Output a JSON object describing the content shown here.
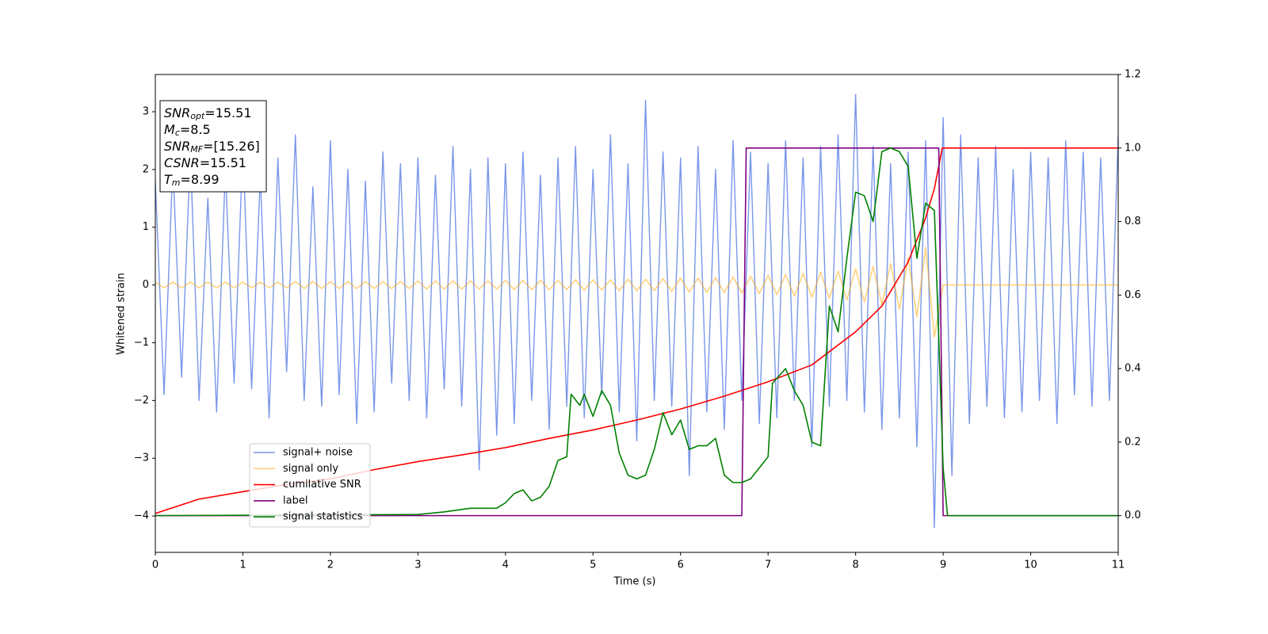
{
  "chart_data": {
    "type": "line",
    "xlabel": "Time (s)",
    "ylabel": "Whitened strain",
    "xlim": [
      0,
      11
    ],
    "xticks": [
      0,
      1,
      2,
      3,
      4,
      5,
      6,
      7,
      8,
      9,
      10,
      11
    ],
    "ylim": [
      -4.63,
      3.645
    ],
    "yticks": [
      {
        "value": -4,
        "label": "−4"
      },
      {
        "value": -3,
        "label": "−3"
      },
      {
        "value": -2,
        "label": "−2"
      },
      {
        "value": -1,
        "label": "−1"
      },
      0,
      1,
      2,
      3
    ],
    "y2lim": [
      -0.1,
      1.2
    ],
    "y2ticks": [
      {
        "value": 0,
        "label": "0.0"
      },
      0.2,
      0.4,
      0.6,
      0.8,
      {
        "value": 1,
        "label": "1.0"
      },
      1.2
    ],
    "legend": "lower left",
    "annotation": [
      {
        "text": "SNR",
        "sub": "opt",
        "tail": "=15.51"
      },
      {
        "text": "M",
        "sub": "c",
        "tail": "=8.5"
      },
      {
        "text": "SNR",
        "sub": "MF",
        "tail": "=[15.26]"
      },
      {
        "text": "CSNR",
        "tail": "=15.51"
      },
      {
        "text": "T",
        "sub": "m",
        "tail": "=8.99"
      }
    ],
    "series": [
      {
        "name": "signal+ noise",
        "color": "rgba(65,105,225,0.7)",
        "x": [
          0,
          0.1,
          0.2,
          0.3,
          0.4,
          0.5,
          0.6,
          0.7,
          0.8,
          0.9,
          1,
          1.1,
          1.2,
          1.3,
          1.4,
          1.5,
          1.6,
          1.7,
          1.8,
          1.9,
          2,
          2.1,
          2.2,
          2.3,
          2.4,
          2.5,
          2.6,
          2.7,
          2.8,
          2.9,
          3,
          3.1,
          3.2,
          3.3,
          3.4,
          3.5,
          3.6,
          3.7,
          3.8,
          3.9,
          4,
          4.1,
          4.2,
          4.3,
          4.4,
          4.5,
          4.6,
          4.7,
          4.8,
          4.9,
          5,
          5.1,
          5.2,
          5.3,
          5.4,
          5.5,
          5.6,
          5.7,
          5.8,
          5.9,
          6,
          6.1,
          6.2,
          6.3,
          6.4,
          6.5,
          6.6,
          6.7,
          6.8,
          6.9,
          7,
          7.1,
          7.2,
          7.3,
          7.4,
          7.5,
          7.6,
          7.7,
          7.8,
          7.9,
          8,
          8.1,
          8.2,
          8.3,
          8.4,
          8.5,
          8.6,
          8.7,
          8.8,
          8.9,
          9,
          9.1,
          9.2,
          9.3,
          9.4,
          9.5,
          9.6,
          9.7,
          9.8,
          9.9,
          10,
          10.1,
          10.2,
          10.3,
          10.4,
          10.5,
          10.6,
          10.7,
          10.8,
          10.9,
          11
        ],
        "values": [
          1.8,
          -1.9,
          2.1,
          -1.6,
          2.3,
          -2.0,
          1.5,
          -2.2,
          2.0,
          -1.7,
          2.4,
          -1.8,
          1.9,
          -2.3,
          2.2,
          -1.5,
          2.6,
          -2.0,
          1.7,
          -2.1,
          2.5,
          -1.9,
          2.0,
          -2.4,
          1.8,
          -2.2,
          2.3,
          -1.7,
          2.1,
          -2.0,
          2.2,
          -2.3,
          1.9,
          -1.8,
          2.4,
          -2.1,
          2.0,
          -3.2,
          2.2,
          -2.6,
          2.1,
          -2.4,
          2.3,
          -2.0,
          1.9,
          -2.5,
          2.2,
          -2.1,
          2.4,
          -2.3,
          2.0,
          -1.9,
          2.6,
          -2.2,
          2.1,
          -2.7,
          3.2,
          -2.0,
          2.3,
          -2.1,
          2.2,
          -3.3,
          2.4,
          -2.2,
          2.0,
          -2.5,
          2.5,
          -2.0,
          2.3,
          -2.4,
          2.1,
          -2.3,
          2.5,
          -2.0,
          2.2,
          -2.8,
          2.4,
          -2.1,
          2.6,
          -2.0,
          3.3,
          -2.2,
          2.4,
          -2.5,
          2.1,
          -2.3,
          2.3,
          -2.8,
          2.5,
          -4.2,
          2.9,
          -3.3,
          2.6,
          -2.4,
          2.2,
          -2.1,
          2.4,
          -2.3,
          2.0,
          -2.2,
          2.3,
          -2.0,
          2.2,
          -2.4,
          2.5,
          -1.9,
          2.3,
          -2.1,
          2.2,
          -2.0,
          2.6
        ]
      },
      {
        "name": "signal only",
        "color": "rgba(255,165,0,0.5)",
        "x": [
          0,
          0.1,
          0.2,
          0.3,
          0.4,
          0.5,
          0.6,
          0.7,
          0.8,
          0.9,
          1,
          1.1,
          1.2,
          1.3,
          1.4,
          1.5,
          1.6,
          1.7,
          1.8,
          1.9,
          2,
          2.1,
          2.2,
          2.3,
          2.4,
          2.5,
          2.6,
          2.7,
          2.8,
          2.9,
          3,
          3.1,
          3.2,
          3.3,
          3.4,
          3.5,
          3.6,
          3.7,
          3.8,
          3.9,
          4,
          4.1,
          4.2,
          4.3,
          4.4,
          4.5,
          4.6,
          4.7,
          4.8,
          4.9,
          5,
          5.1,
          5.2,
          5.3,
          5.4,
          5.5,
          5.6,
          5.7,
          5.8,
          5.9,
          6,
          6.1,
          6.2,
          6.3,
          6.4,
          6.5,
          6.6,
          6.7,
          6.8,
          6.9,
          7,
          7.1,
          7.2,
          7.3,
          7.4,
          7.5,
          7.6,
          7.7,
          7.8,
          7.9,
          8,
          8.1,
          8.2,
          8.3,
          8.4,
          8.5,
          8.6,
          8.7,
          8.8,
          8.9,
          9,
          11
        ],
        "values": [
          0.05,
          -0.05,
          0.05,
          -0.05,
          0.05,
          -0.05,
          0.05,
          -0.05,
          0.05,
          -0.05,
          0.05,
          -0.05,
          0.05,
          -0.05,
          0.05,
          -0.05,
          0.06,
          -0.06,
          0.06,
          -0.06,
          0.06,
          -0.06,
          0.06,
          -0.06,
          0.06,
          -0.06,
          0.06,
          -0.06,
          0.06,
          -0.06,
          0.07,
          -0.07,
          0.07,
          -0.07,
          0.07,
          -0.07,
          0.07,
          -0.07,
          0.07,
          -0.07,
          0.08,
          -0.08,
          0.08,
          -0.08,
          0.08,
          -0.08,
          0.08,
          -0.08,
          0.09,
          -0.09,
          0.09,
          -0.09,
          0.09,
          -0.1,
          0.1,
          -0.1,
          0.1,
          -0.1,
          0.11,
          -0.11,
          0.12,
          -0.12,
          0.12,
          -0.13,
          0.13,
          -0.13,
          0.14,
          -0.14,
          0.15,
          -0.15,
          0.17,
          -0.17,
          0.18,
          -0.19,
          0.2,
          -0.21,
          0.22,
          -0.23,
          0.24,
          -0.26,
          0.28,
          -0.3,
          0.32,
          -0.34,
          0.37,
          -0.42,
          0.47,
          -0.55,
          0.65,
          -0.9,
          0,
          0
        ]
      },
      {
        "name": "cumilative SNR",
        "color": "#ff0000",
        "axis": "y2",
        "x": [
          0,
          0.5,
          1,
          1.5,
          2,
          2.5,
          3,
          3.5,
          4,
          4.5,
          5,
          5.5,
          6,
          6.5,
          7,
          7.5,
          8,
          8.3,
          8.6,
          8.8,
          8.9,
          8.99,
          11
        ],
        "values": [
          0.006,
          0.045,
          0.065,
          0.085,
          0.1,
          0.125,
          0.147,
          0.165,
          0.185,
          0.21,
          0.233,
          0.26,
          0.29,
          0.325,
          0.364,
          0.41,
          0.5,
          0.57,
          0.69,
          0.81,
          0.89,
          1.0,
          1.0
        ]
      },
      {
        "name": "label",
        "color": "#800080",
        "axis": "y2",
        "x": [
          0,
          6.7,
          6.75,
          8.95,
          9.0,
          11
        ],
        "values": [
          0,
          0,
          1,
          1,
          0,
          0
        ]
      },
      {
        "name": "signal statistics",
        "color": "#008000",
        "axis": "y2",
        "x": [
          0,
          3,
          3.3,
          3.6,
          3.9,
          4.0,
          4.1,
          4.2,
          4.3,
          4.4,
          4.5,
          4.6,
          4.7,
          4.75,
          4.85,
          4.9,
          5.0,
          5.1,
          5.2,
          5.3,
          5.4,
          5.5,
          5.6,
          5.7,
          5.8,
          5.9,
          6.0,
          6.1,
          6.2,
          6.3,
          6.4,
          6.5,
          6.6,
          6.7,
          6.8,
          6.9,
          7.0,
          7.05,
          7.2,
          7.3,
          7.4,
          7.5,
          7.6,
          7.7,
          7.8,
          7.9,
          8.0,
          8.1,
          8.2,
          8.3,
          8.4,
          8.5,
          8.6,
          8.7,
          8.8,
          8.9,
          9.0,
          9.05,
          11
        ],
        "values": [
          0,
          0.003,
          0.01,
          0.02,
          0.02,
          0.035,
          0.06,
          0.07,
          0.04,
          0.05,
          0.08,
          0.15,
          0.16,
          0.33,
          0.3,
          0.33,
          0.27,
          0.34,
          0.3,
          0.17,
          0.11,
          0.1,
          0.11,
          0.18,
          0.28,
          0.22,
          0.26,
          0.18,
          0.19,
          0.19,
          0.21,
          0.11,
          0.09,
          0.09,
          0.1,
          0.13,
          0.16,
          0.36,
          0.4,
          0.34,
          0.3,
          0.2,
          0.19,
          0.57,
          0.5,
          0.7,
          0.88,
          0.87,
          0.8,
          0.99,
          1.0,
          0.99,
          0.95,
          0.7,
          0.85,
          0.83,
          0.13,
          0,
          0
        ]
      }
    ]
  }
}
